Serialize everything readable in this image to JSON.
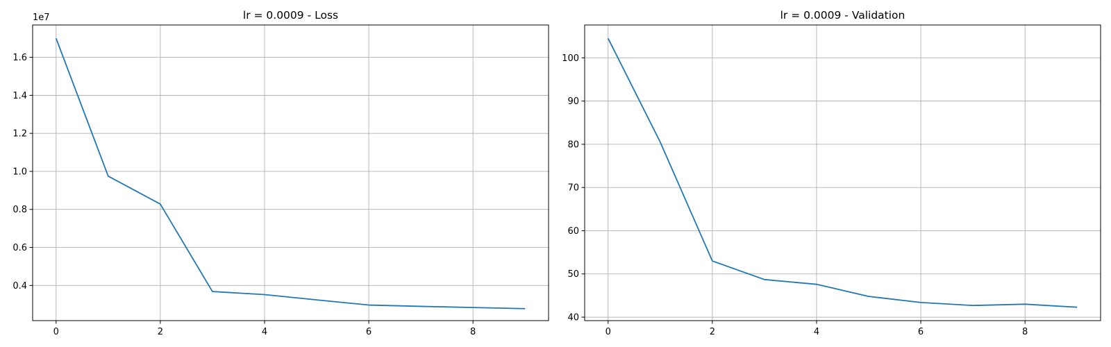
{
  "chart_data": [
    {
      "type": "line",
      "title": "lr = 0.0009 - Loss",
      "xlabel": "",
      "ylabel": "",
      "x": [
        0,
        1,
        2,
        3,
        4,
        5,
        6,
        7,
        8,
        9
      ],
      "series": [
        {
          "values": [
            17000000,
            9750000,
            8280000,
            3680000,
            3520000,
            3240000,
            2970000,
            2900000,
            2840000,
            2780000
          ]
        }
      ],
      "xlim": [
        -0.45,
        9.45
      ],
      "ylim": [
        2150000,
        17700000
      ],
      "xticks": [
        0,
        2,
        4,
        6,
        8
      ],
      "xtick_labels": [
        "0",
        "2",
        "4",
        "6",
        "8"
      ],
      "yticks": [
        4000000,
        6000000,
        8000000,
        10000000,
        12000000,
        14000000,
        16000000
      ],
      "ytick_labels": [
        "0.4",
        "0.6",
        "0.8",
        "1.0",
        "1.2",
        "1.4",
        "1.6"
      ],
      "offset_text": "1e7",
      "grid": true,
      "color": "#1f77b4"
    },
    {
      "type": "line",
      "title": "lr = 0.0009 - Validation",
      "xlabel": "",
      "ylabel": "",
      "x": [
        0,
        1,
        2,
        3,
        4,
        5,
        6,
        7,
        8,
        9
      ],
      "series": [
        {
          "values": [
            104.5,
            80.5,
            53.0,
            48.7,
            47.6,
            44.8,
            43.4,
            42.7,
            43.0,
            42.3
          ]
        }
      ],
      "xlim": [
        -0.45,
        9.45
      ],
      "ylim": [
        39.2,
        107.6
      ],
      "xticks": [
        0,
        2,
        4,
        6,
        8
      ],
      "xtick_labels": [
        "0",
        "2",
        "4",
        "6",
        "8"
      ],
      "yticks": [
        40,
        50,
        60,
        70,
        80,
        90,
        100
      ],
      "ytick_labels": [
        "40",
        "50",
        "60",
        "70",
        "80",
        "90",
        "100"
      ],
      "offset_text": "",
      "grid": true,
      "color": "#1f77b4"
    }
  ]
}
